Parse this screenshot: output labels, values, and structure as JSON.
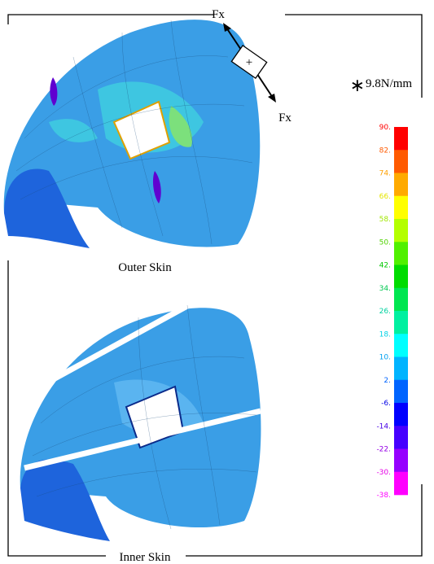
{
  "force": {
    "top_label": "Fx",
    "bottom_label": "Fx",
    "box_sign": "+"
  },
  "captions": {
    "outer": "Outer Skin",
    "inner": "Inner Skin"
  },
  "legend": {
    "unit_mark": "∗",
    "unit": "9.8N/mm",
    "labels": [
      "90.",
      "82.",
      "74.",
      "66.",
      "58.",
      "50.",
      "42.",
      "34.",
      "26.",
      "18.",
      "10.",
      "2.",
      "-6.",
      "-14.",
      "-22.",
      "-30.",
      "-38."
    ],
    "label_colors": [
      "#ff0000",
      "#ff5a00",
      "#ffa000",
      "#e6e600",
      "#a0e600",
      "#50d200",
      "#00c800",
      "#00c850",
      "#00d2a0",
      "#00d2e6",
      "#00a0f0",
      "#0064ff",
      "#0000e6",
      "#4600e6",
      "#9600e6",
      "#e600e6",
      "#ff00ff"
    ],
    "colors": [
      "#ff0000",
      "#ff5a00",
      "#ffaa00",
      "#ffff00",
      "#b4ff00",
      "#50f000",
      "#00dc00",
      "#00e650",
      "#00f0a0",
      "#00ffff",
      "#00b4ff",
      "#0064ff",
      "#0000ff",
      "#4600ff",
      "#9600ff",
      "#ff00ff"
    ]
  }
}
